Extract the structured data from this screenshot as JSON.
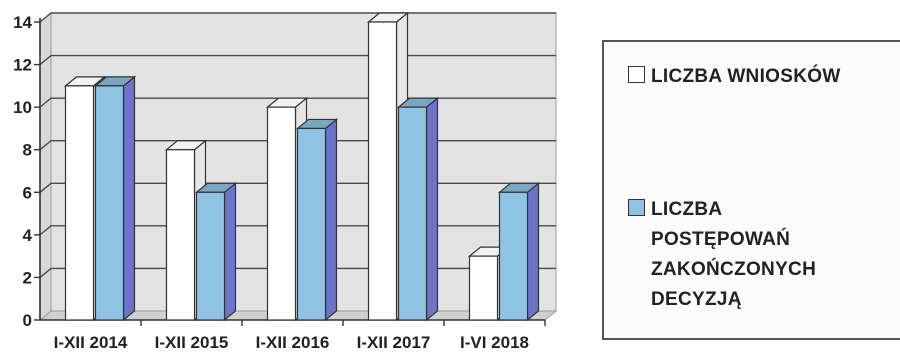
{
  "colors": {
    "series1_fill": "#ffffff",
    "series2_fill": "#8fc3e3",
    "wall": "#e3e3e3",
    "gridline": "#4a4a4a"
  },
  "chart_data": {
    "type": "bar",
    "categories": [
      "I-XII 2014",
      "I-XII 2015",
      "I-XII 2016",
      "I-XII 2017",
      "I-VI 2018"
    ],
    "series": [
      {
        "name": "LICZBA WNIOSKÓW",
        "values": [
          11,
          8,
          10,
          14,
          3
        ]
      },
      {
        "name": "LICZBA POSTĘPOWAŃ ZAKOŃCZONYCH DECYZJĄ",
        "values": [
          11,
          6,
          9,
          10,
          6
        ]
      }
    ],
    "ylim": [
      0,
      14
    ],
    "yticks": [
      "0",
      "2",
      "4",
      "6",
      "8",
      "10",
      "12",
      "14"
    ],
    "grid": true,
    "legend_position": "right",
    "three_d": true
  },
  "legend": {
    "items": [
      {
        "lines": [
          "LICZBA WNIOSKÓW"
        ]
      },
      {
        "lines": [
          "LICZBA",
          "POSTĘPOWAŃ",
          "ZAKOŃCZONYCH",
          "DECYZJĄ"
        ]
      }
    ]
  }
}
